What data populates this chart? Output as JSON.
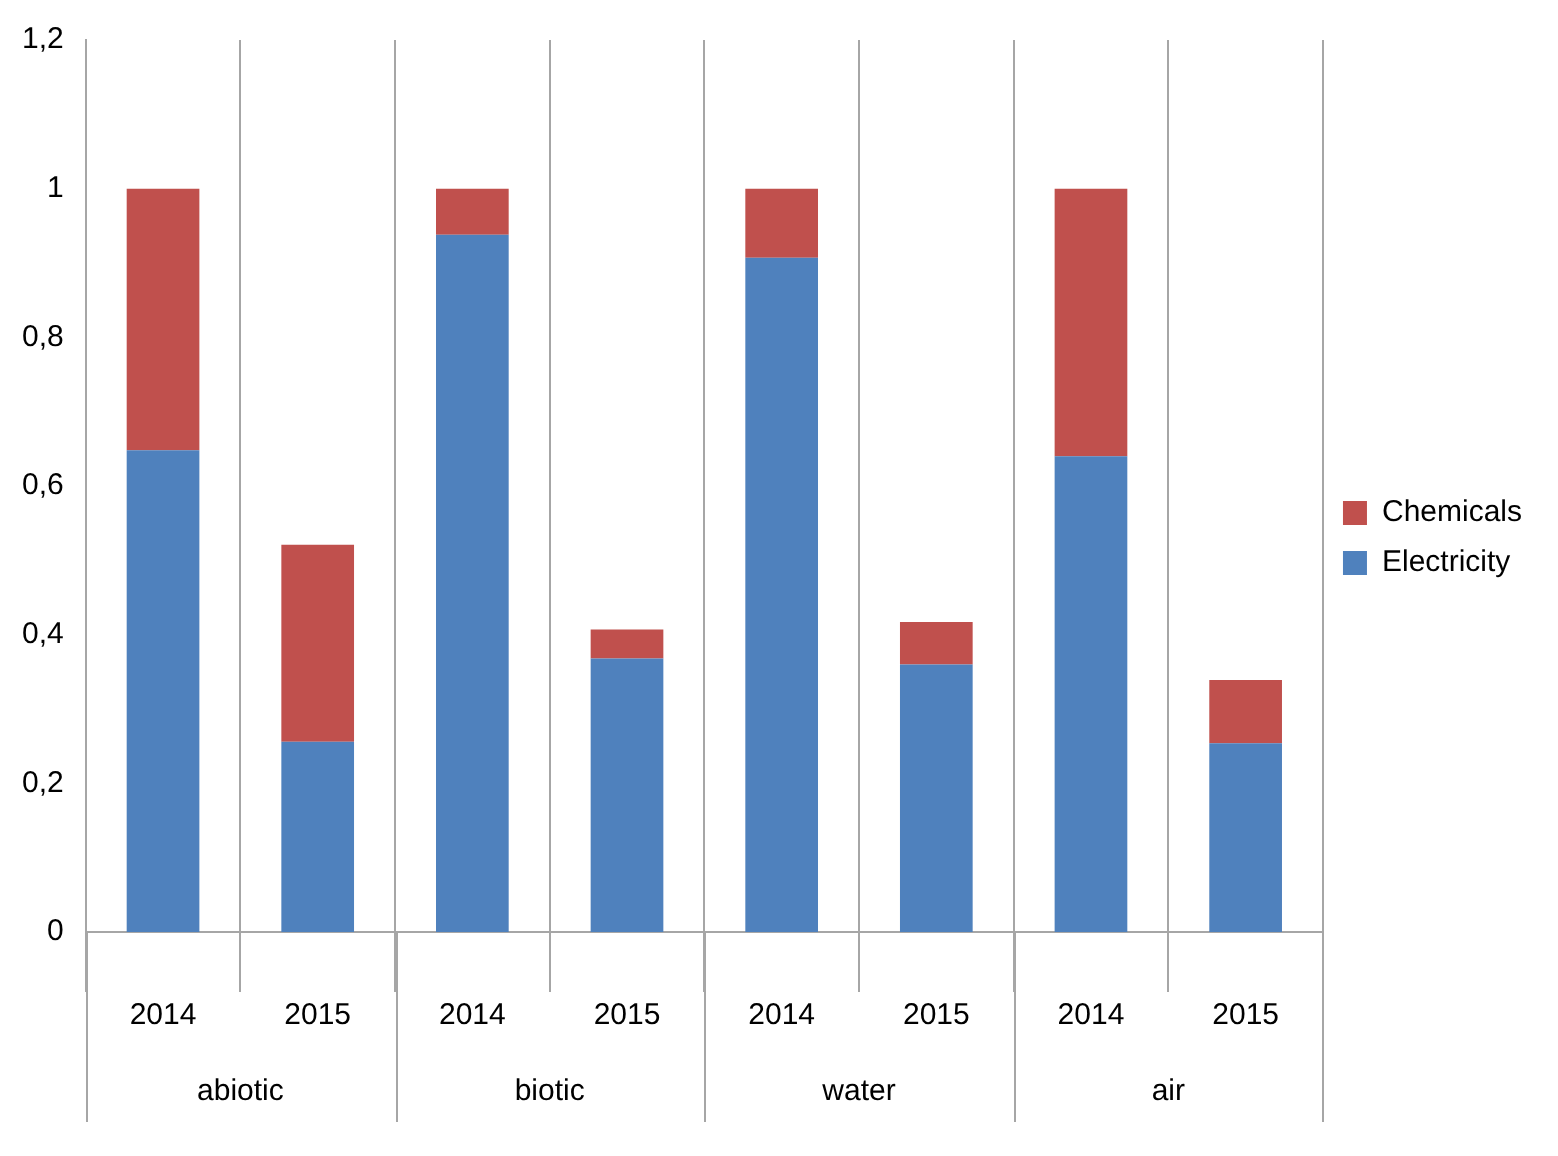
{
  "chart_data": {
    "type": "bar",
    "stacked": true,
    "categories": [
      "2014",
      "2015",
      "2014",
      "2015",
      "2014",
      "2015",
      "2014",
      "2015"
    ],
    "series": [
      {
        "name": "Electricity",
        "color": "#4f81bd",
        "values": [
          0.648,
          0.256,
          0.938,
          0.368,
          0.907,
          0.36,
          0.64,
          0.254
        ]
      },
      {
        "name": "Chemicals",
        "color": "#c0504d",
        "values": [
          0.352,
          0.265,
          0.062,
          0.039,
          0.093,
          0.057,
          0.36,
          0.085
        ]
      }
    ],
    "ylim": [
      0,
      1.2
    ],
    "yticks": [
      {
        "value": 0,
        "label": "0"
      },
      {
        "value": 0.2,
        "label": "0,2"
      },
      {
        "value": 0.4,
        "label": "0,4"
      },
      {
        "value": 0.6,
        "label": "0,6"
      },
      {
        "value": 0.8,
        "label": "0,8"
      },
      {
        "value": 1,
        "label": "1"
      },
      {
        "value": 1.2,
        "label": "1,2"
      }
    ],
    "annotations": [
      "abiotic",
      "biotic",
      "water",
      "air"
    ],
    "grid": "x",
    "legend": "right"
  }
}
